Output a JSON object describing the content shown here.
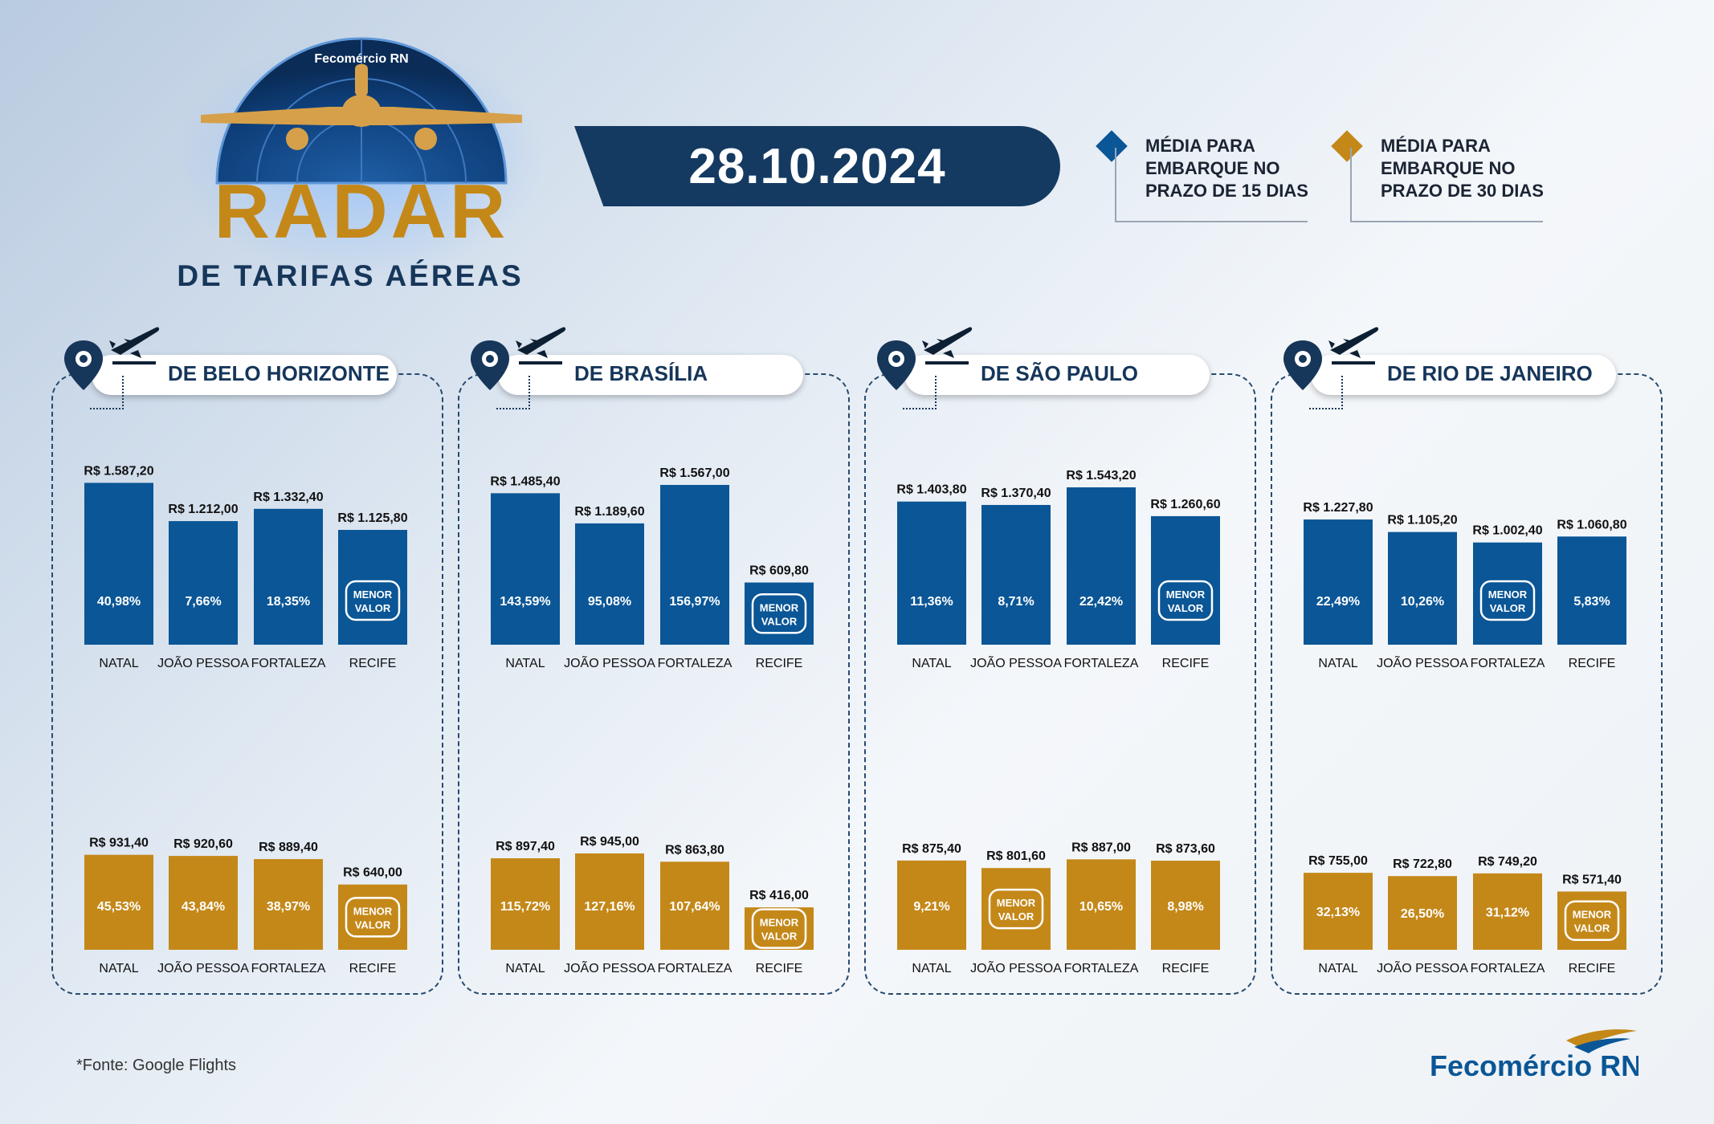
{
  "header": {
    "brand_small": "Fecomércio RN",
    "radar_word": "RADAR",
    "subtitle": "DE TARIFAS AÉREAS",
    "date": "28.10.2024"
  },
  "legend": [
    {
      "label": "MÉDIA PARA EMBARQUE NO PRAZO DE 15 DIAS",
      "color": "#0a5696"
    },
    {
      "label": "MÉDIA PARA EMBARQUE NO PRAZO DE 30 DIAS",
      "color": "#c48819"
    }
  ],
  "badge_text": "MENOR VALOR",
  "colors": {
    "blue": "#0a5696",
    "gold": "#c48819",
    "navy": "#143a61"
  },
  "panels": [
    {
      "title": "DE BELO HORIZONTE",
      "icons": [
        "map-pin-icon",
        "airplane-icon"
      ]
    },
    {
      "title": "DE BRASÍLIA",
      "icons": [
        "map-pin-icon",
        "airplane-icon"
      ]
    },
    {
      "title": "DE SÃO PAULO",
      "icons": [
        "map-pin-icon",
        "airplane-icon"
      ]
    },
    {
      "title": "DE RIO DE JANEIRO",
      "icons": [
        "map-pin-icon",
        "airplane-icon"
      ]
    }
  ],
  "chart_data": [
    {
      "type": "bar",
      "panel": "DE BELO HORIZONTE",
      "series": "15",
      "categories": [
        "NATAL",
        "JOÃO PESSOA",
        "FORTALEZA",
        "RECIFE"
      ],
      "values": [
        1587.2,
        1212.0,
        1332.4,
        1125.8
      ],
      "value_labels": [
        "R$ 1.587,20",
        "R$ 1.212,00",
        "R$ 1.332,40",
        "R$ 1.125,80"
      ],
      "inner_labels": [
        "40,98%",
        "7,66%",
        "18,35%",
        null
      ],
      "min_index": 3
    },
    {
      "type": "bar",
      "panel": "DE BELO HORIZONTE",
      "series": "30",
      "categories": [
        "NATAL",
        "JOÃO PESSOA",
        "FORTALEZA",
        "RECIFE"
      ],
      "values": [
        931.4,
        920.6,
        889.4,
        640.0
      ],
      "value_labels": [
        "R$ 931,40",
        "R$ 920,60",
        "R$ 889,40",
        "R$ 640,00"
      ],
      "inner_labels": [
        "45,53%",
        "43,84%",
        "38,97%",
        null
      ],
      "min_index": 3
    },
    {
      "type": "bar",
      "panel": "DE BRASÍLIA",
      "series": "15",
      "categories": [
        "NATAL",
        "JOÃO PESSOA",
        "FORTALEZA",
        "RECIFE"
      ],
      "values": [
        1485.4,
        1189.6,
        1567.0,
        609.8
      ],
      "value_labels": [
        "R$ 1.485,40",
        "R$ 1.189,60",
        "R$ 1.567,00",
        "R$ 609,80"
      ],
      "inner_labels": [
        "143,59%",
        "95,08%",
        "156,97%",
        null
      ],
      "min_index": 3
    },
    {
      "type": "bar",
      "panel": "DE BRASÍLIA",
      "series": "30",
      "categories": [
        "NATAL",
        "JOÃO PESSOA",
        "FORTALEZA",
        "RECIFE"
      ],
      "values": [
        897.4,
        945.0,
        863.8,
        416.0
      ],
      "value_labels": [
        "R$ 897,40",
        "R$ 945,00",
        "R$ 863,80",
        "R$ 416,00"
      ],
      "inner_labels": [
        "115,72%",
        "127,16%",
        "107,64%",
        null
      ],
      "min_index": 3
    },
    {
      "type": "bar",
      "panel": "DE SÃO PAULO",
      "series": "15",
      "categories": [
        "NATAL",
        "JOÃO PESSOA",
        "FORTALEZA",
        "RECIFE"
      ],
      "values": [
        1403.8,
        1370.4,
        1543.2,
        1260.6
      ],
      "value_labels": [
        "R$ 1.403,80",
        "R$ 1.370,40",
        "R$ 1.543,20",
        "R$ 1.260,60"
      ],
      "inner_labels": [
        "11,36%",
        "8,71%",
        "22,42%",
        null
      ],
      "min_index": 3
    },
    {
      "type": "bar",
      "panel": "DE SÃO PAULO",
      "series": "30",
      "categories": [
        "NATAL",
        "JOÃO PESSOA",
        "FORTALEZA",
        "RECIFE"
      ],
      "values": [
        875.4,
        801.6,
        887.0,
        873.6
      ],
      "value_labels": [
        "R$ 875,40",
        "R$ 801,60",
        "R$ 887,00",
        "R$ 873,60"
      ],
      "inner_labels": [
        "9,21%",
        null,
        "10,65%",
        "8,98%"
      ],
      "min_index": 1
    },
    {
      "type": "bar",
      "panel": "DE RIO DE JANEIRO",
      "series": "15",
      "categories": [
        "NATAL",
        "JOÃO PESSOA",
        "FORTALEZA",
        "RECIFE"
      ],
      "values": [
        1227.8,
        1105.2,
        1002.4,
        1060.8
      ],
      "value_labels": [
        "R$ 1.227,80",
        "R$ 1.105,20",
        "R$ 1.002,40",
        "R$ 1.060,80"
      ],
      "inner_labels": [
        "22,49%",
        "10,26%",
        null,
        "5,83%"
      ],
      "min_index": 2
    },
    {
      "type": "bar",
      "panel": "DE RIO DE JANEIRO",
      "series": "30",
      "categories": [
        "NATAL",
        "JOÃO PESSOA",
        "FORTALEZA",
        "RECIFE"
      ],
      "values": [
        755.0,
        722.8,
        749.2,
        571.4
      ],
      "value_labels": [
        "R$ 755,00",
        "R$ 722,80",
        "R$ 749,20",
        "R$ 571,40"
      ],
      "inner_labels": [
        "32,13%",
        "26,50%",
        "31,12%",
        null
      ],
      "min_index": 3
    }
  ],
  "footer": {
    "source": "*Fonte: Google Flights",
    "brand": "Fecomércio RN"
  }
}
